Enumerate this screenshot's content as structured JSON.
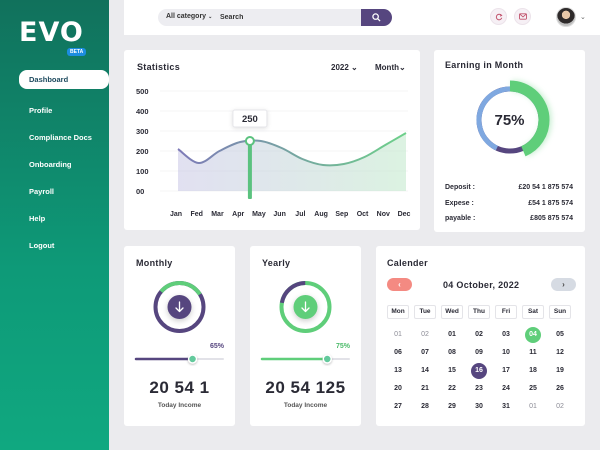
{
  "brand": {
    "logo": "EVO",
    "badge": "BETA"
  },
  "nav": {
    "items": [
      "Dashboard",
      "Profile",
      "Compliance Docs",
      "Onboarding",
      "Payroll",
      "Help",
      "Logout"
    ],
    "active": "Dashboard"
  },
  "topbar": {
    "search_category": "All category",
    "search_placeholder": "Search",
    "icons": [
      "search-icon",
      "refresh-icon",
      "mail-icon",
      "chevron-down-icon"
    ]
  },
  "statistics": {
    "title": "Statistics",
    "year_select": "2022",
    "period_select": "Month",
    "tooltip": "250"
  },
  "chart_data": {
    "type": "area",
    "title": "Statistics",
    "categories": [
      "Jan",
      "Fed",
      "Mar",
      "Apr",
      "May",
      "Jun",
      "Jul",
      "Aug",
      "Sep",
      "Oct",
      "Nov",
      "Dec"
    ],
    "y_ticks": [
      "500",
      "400",
      "300",
      "200",
      "100",
      "00"
    ],
    "ylim": [
      0,
      500
    ],
    "series": [
      {
        "values": [
          210,
          140,
          200,
          245,
          250,
          215,
          160,
          130,
          135,
          170,
          230,
          290
        ]
      }
    ],
    "highlight": {
      "category": "May",
      "value": 250
    },
    "colors": {
      "line_start": "#7e7ab8",
      "line_end": "#6dd08a",
      "marker": "#5bc27f"
    }
  },
  "earning": {
    "title": "Earning in Month",
    "percent_label": "75%",
    "percent": 75,
    "rows": [
      {
        "label": "Deposit :",
        "value": "£20 54 1 875 574"
      },
      {
        "label": "Expese :",
        "value": "£54 1 875 574"
      },
      {
        "label": "payable :",
        "value": "£805 875 574"
      }
    ],
    "colors": {
      "main": "#5fce7a",
      "secondary": "#7fa8e0",
      "tertiary": "#56467f"
    }
  },
  "monthly": {
    "title": "Monthly",
    "percent_label": "65%",
    "percent": 65,
    "amount": "20 54 1",
    "caption": "Today Income",
    "color": "#56467f"
  },
  "yearly": {
    "title": "Yearly",
    "percent_label": "75%",
    "percent": 75,
    "amount": "20 54 125",
    "caption": "Today Income",
    "color": "#5fce7a"
  },
  "calendar": {
    "title": "Calender",
    "current": "04 October, 2022",
    "prev": "‹",
    "next": "›",
    "weekdays": [
      "Mon",
      "Tue",
      "Wed",
      "Thu",
      "Fri",
      "Sat",
      "Sun"
    ],
    "rows": [
      [
        "01",
        "02",
        "01",
        "02",
        "03",
        "04",
        "05"
      ],
      [
        "06",
        "07",
        "08",
        "09",
        "10",
        "11",
        "12"
      ],
      [
        "13",
        "14",
        "15",
        "16",
        "17",
        "18",
        "19"
      ],
      [
        "20",
        "21",
        "22",
        "23",
        "24",
        "25",
        "26"
      ],
      [
        "27",
        "28",
        "29",
        "30",
        "31",
        "01",
        "02"
      ]
    ],
    "muted": [
      [
        0,
        0
      ],
      [
        0,
        1
      ],
      [
        4,
        5
      ],
      [
        4,
        6
      ]
    ],
    "today": [
      0,
      5
    ],
    "selected": [
      2,
      3
    ]
  }
}
